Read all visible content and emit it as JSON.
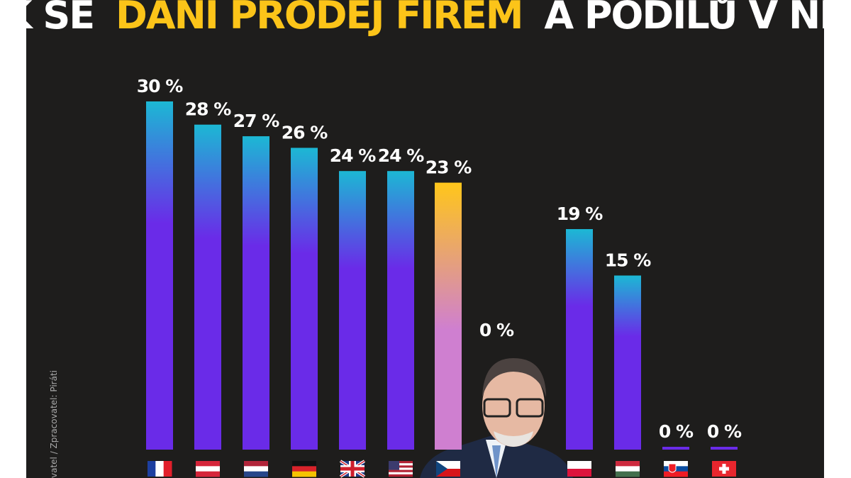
{
  "chart_data": {
    "type": "bar",
    "title_parts": [
      "JAK SE",
      "DANÍ PRODEJ FIREM",
      "A PODÍLŮ V NICH"
    ],
    "title_colors": [
      "#ffffff",
      "#fcc419",
      "#ffffff"
    ],
    "source": "vatel / Zpracovatel: Piráti",
    "categories": [
      null,
      null,
      null,
      null,
      null,
      null,
      null,
      null,
      null,
      null,
      null,
      null
    ],
    "values": [
      30,
      28,
      27,
      26,
      24,
      24,
      23,
      0,
      19,
      15,
      0,
      0
    ],
    "value_labels": [
      "30 %",
      "28 %",
      "27 %",
      "26 %",
      "24 %",
      "24 %",
      "23 %",
      "0 %",
      "19 %",
      "15 %",
      "0 %",
      "0 %"
    ],
    "color": [
      "#1cb8d4",
      "#6a2be8"
    ],
    "highlight_color": [
      "#ffc61a",
      "#cf7fd0"
    ],
    "highlight": [
      false,
      false,
      false,
      false,
      false,
      false,
      true,
      false,
      false,
      false,
      false,
      false
    ]
  }
}
